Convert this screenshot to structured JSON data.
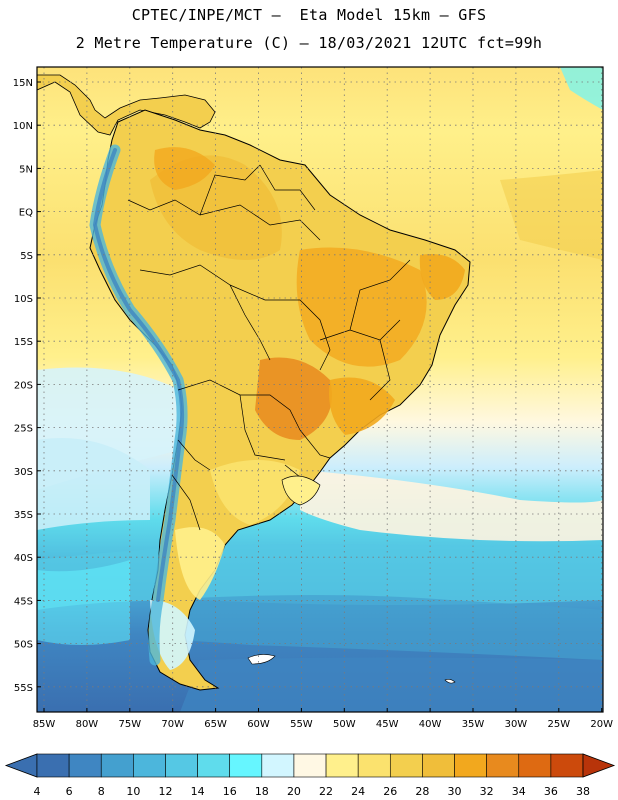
{
  "header": {
    "line1": "CPTEC/INPE/MCT –  Eta Model 15km – GFS",
    "line2": "2 Metre Temperature (C) – 18/03/2021 12UTC fct=99h"
  },
  "axes": {
    "lat_labels": [
      "15N",
      "10N",
      "5N",
      "EQ",
      "5S",
      "10S",
      "15S",
      "20S",
      "25S",
      "30S",
      "35S",
      "40S",
      "45S",
      "50S",
      "55S"
    ],
    "lon_labels": [
      "85W",
      "80W",
      "75W",
      "70W",
      "65W",
      "60W",
      "55W",
      "50W",
      "45W",
      "40W",
      "35W",
      "30W",
      "25W",
      "20W"
    ]
  },
  "colorbar": {
    "ticks": [
      "4",
      "6",
      "8",
      "10",
      "12",
      "14",
      "16",
      "18",
      "20",
      "22",
      "24",
      "26",
      "28",
      "30",
      "32",
      "34",
      "36",
      "38"
    ],
    "colors": [
      "#3a6fb0",
      "#3f86c2",
      "#44a0cf",
      "#4cb6dc",
      "#55c8e4",
      "#5fdcec",
      "#66f6ff",
      "#d2f6ff",
      "#fff8e4",
      "#fff08c",
      "#fbe26e",
      "#f3cf4e",
      "#f0be3a",
      "#f2a81e",
      "#e88a1e",
      "#de6a12",
      "#cc4a0c",
      "#b8340a"
    ]
  }
}
